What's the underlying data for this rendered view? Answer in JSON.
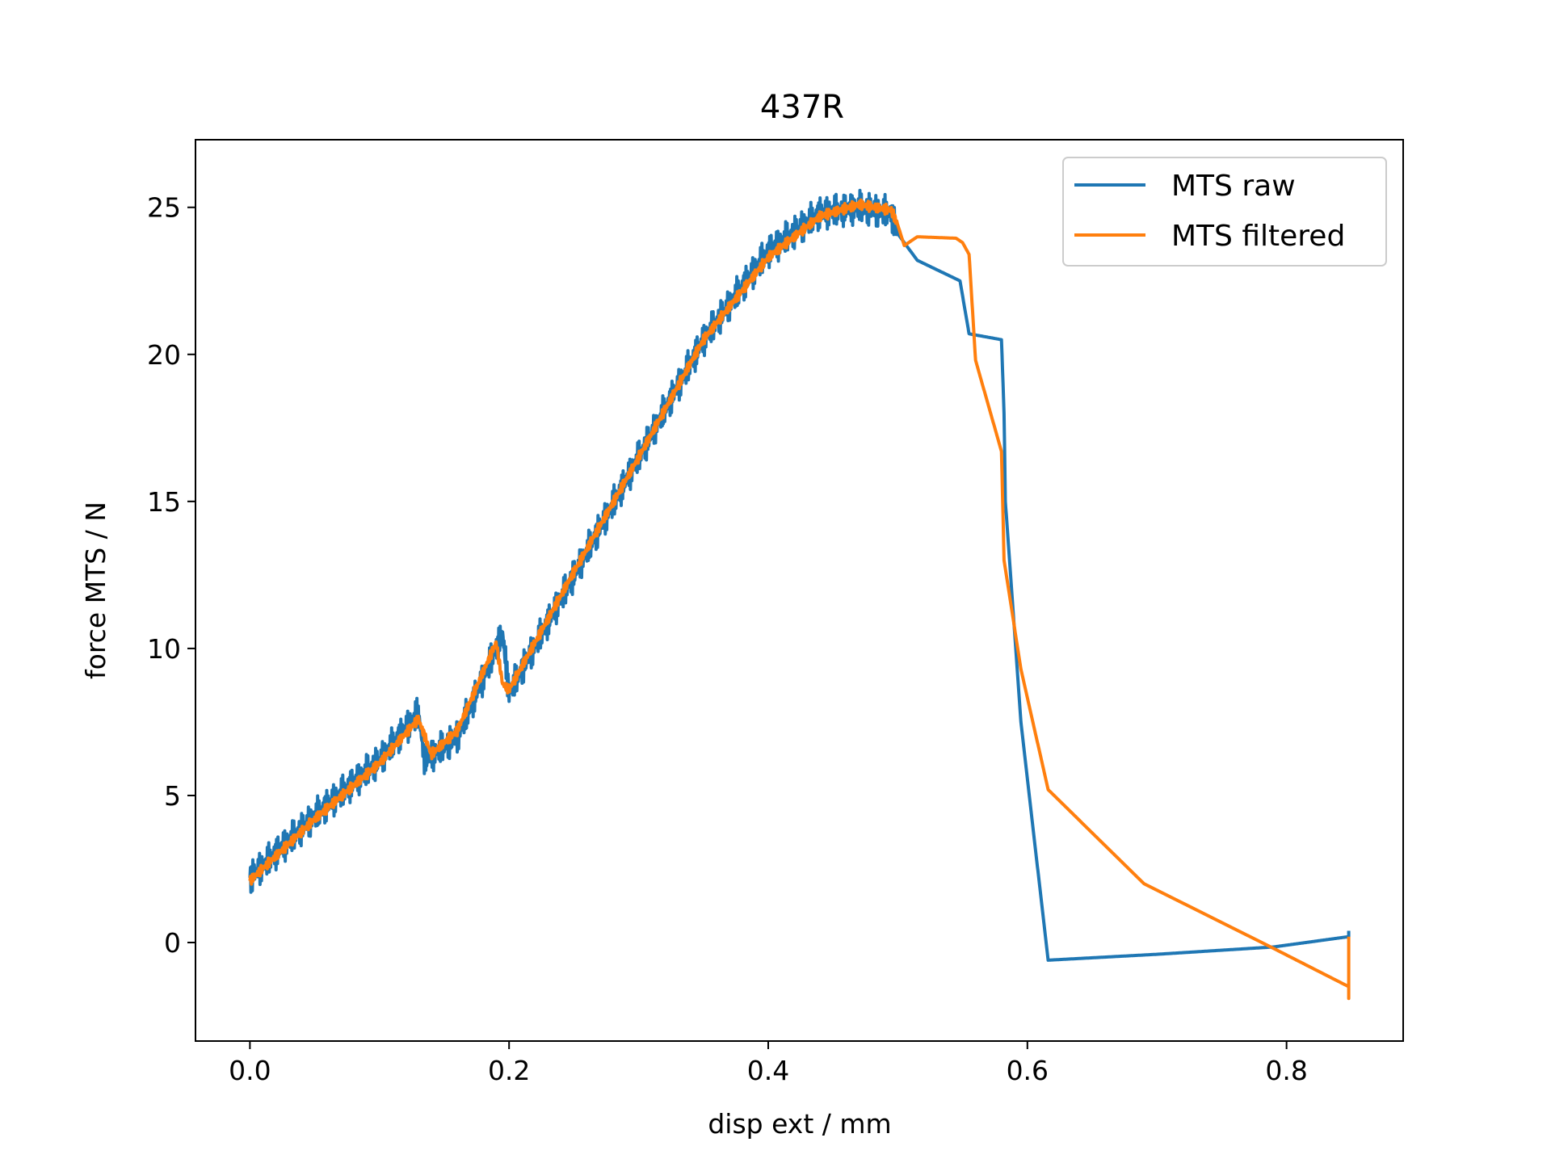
{
  "chart_data": {
    "type": "line",
    "title": "437R",
    "xlabel": "disp ext / mm",
    "ylabel": "force MTS / N",
    "xlim": [
      -0.042,
      0.89
    ],
    "ylim": [
      -3.35,
      27.3
    ],
    "xticks": [
      "0.0",
      "0.2",
      "0.4",
      "0.6",
      "0.8"
    ],
    "yticks": [
      "0",
      "5",
      "10",
      "15",
      "20",
      "25"
    ],
    "grid": false,
    "legend_position": "top-right",
    "series": [
      {
        "name": "MTS raw",
        "color": "#1f77b4",
        "x": [
          0.0,
          0.05,
          0.1,
          0.13,
          0.135,
          0.16,
          0.195,
          0.2,
          0.25,
          0.3,
          0.35,
          0.4,
          0.44,
          0.47,
          0.495,
          0.5,
          0.515,
          0.548,
          0.555,
          0.58,
          0.582,
          0.583,
          0.595,
          0.616,
          0.7,
          0.79,
          0.848,
          0.848
        ],
        "y": [
          2.2,
          4.3,
          6.2,
          7.8,
          6.2,
          7.0,
          10.5,
          8.5,
          12.5,
          16.5,
          20.5,
          23.5,
          24.8,
          25.0,
          24.8,
          24.1,
          23.2,
          22.5,
          20.7,
          20.5,
          18.0,
          15.0,
          7.5,
          -0.6,
          -0.4,
          -0.15,
          0.2,
          0.4
        ],
        "band": 0.6
      },
      {
        "name": "MTS filtered",
        "color": "#ff7f0e",
        "x": [
          0.0,
          0.05,
          0.1,
          0.13,
          0.14,
          0.16,
          0.19,
          0.195,
          0.2,
          0.25,
          0.3,
          0.35,
          0.4,
          0.44,
          0.47,
          0.495,
          0.5,
          0.505,
          0.515,
          0.545,
          0.55,
          0.555,
          0.56,
          0.58,
          0.582,
          0.595,
          0.616,
          0.69,
          0.79,
          0.848,
          0.848,
          0.848
        ],
        "y": [
          2.1,
          4.2,
          6.1,
          7.6,
          6.4,
          7.2,
          10.2,
          8.8,
          8.6,
          12.6,
          16.5,
          20.5,
          23.3,
          24.7,
          25.1,
          24.9,
          24.4,
          23.7,
          24.0,
          23.95,
          23.8,
          23.4,
          19.8,
          16.7,
          13.0,
          9.3,
          5.2,
          2.0,
          -0.2,
          -1.5,
          -1.9,
          0.2
        ]
      }
    ]
  }
}
